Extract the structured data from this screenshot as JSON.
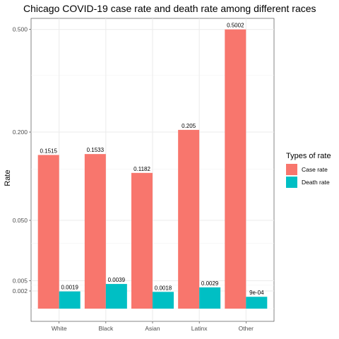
{
  "chart_data": {
    "type": "bar",
    "title": "Chicago COVID-19 case rate and death rate among different races",
    "xlabel": "",
    "ylabel": "Rate",
    "y_scale": "sqrt",
    "ylim": [
      0,
      0.56
    ],
    "y_ticks": [
      {
        "value": 0.002,
        "label": "0.002"
      },
      {
        "value": 0.005,
        "label": "0.005"
      },
      {
        "value": 0.05,
        "label": "0.050"
      },
      {
        "value": 0.2,
        "label": "0.200"
      },
      {
        "value": 0.5,
        "label": "0.500"
      }
    ],
    "categories": [
      "White",
      "Black",
      "Asian",
      "Latinx",
      "Other"
    ],
    "series": [
      {
        "name": "Case rate",
        "color": "#F8766D",
        "values": [
          0.1515,
          0.1533,
          0.1182,
          0.205,
          0.5002
        ],
        "labels": [
          "0.1515",
          "0.1533",
          "0.1182",
          "0.205",
          "0.5002"
        ]
      },
      {
        "name": "Death rate",
        "color": "#00BFC4",
        "values": [
          0.0019,
          0.0039,
          0.0018,
          0.0029,
          0.0009
        ],
        "labels": [
          "0.0019",
          "0.0039",
          "0.0018",
          "0.0029",
          "9e-04"
        ]
      }
    ],
    "legend": {
      "title": "Types of rate",
      "position": "right"
    },
    "grid": true
  }
}
